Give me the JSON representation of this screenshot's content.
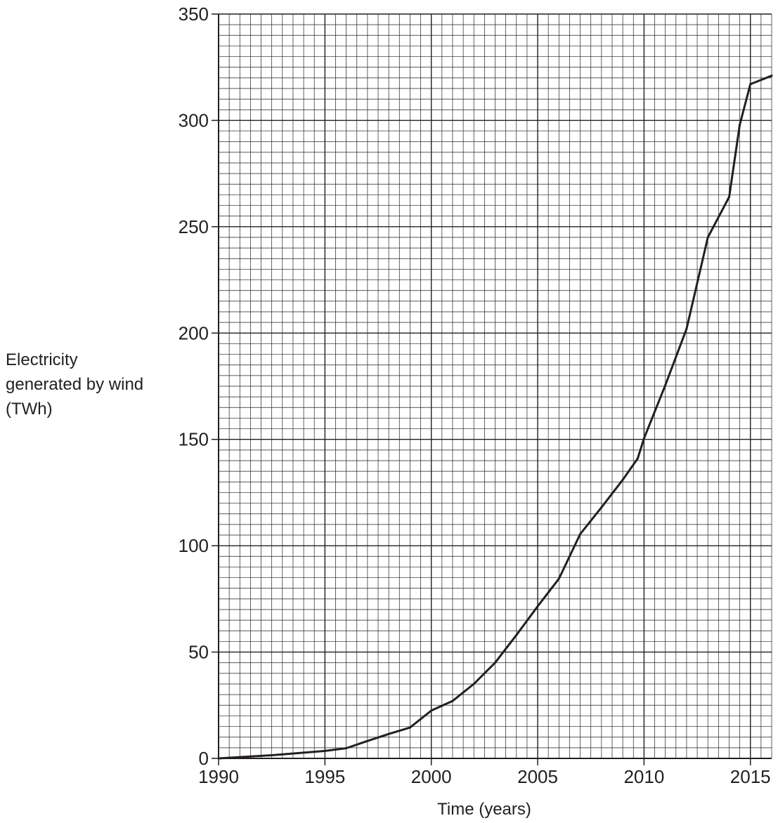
{
  "chart_data": {
    "type": "line",
    "xlabel": "Time (years)",
    "ylabel_lines": [
      "Electricity",
      "generated by wind",
      "(TWh)"
    ],
    "xlim": [
      1990,
      2016
    ],
    "ylim": [
      0,
      350
    ],
    "x_ticks": [
      1990,
      1995,
      2000,
      2005,
      2010,
      2015
    ],
    "y_ticks": [
      0,
      50,
      100,
      150,
      200,
      250,
      300,
      350
    ],
    "x_tick_labels": [
      "1990",
      "1995",
      "2000",
      "2005",
      "2010",
      "2015"
    ],
    "y_tick_labels": [
      "0",
      "50",
      "100",
      "150",
      "200",
      "250",
      "300",
      "350"
    ],
    "grid": true,
    "series": [
      {
        "x": [
          1990,
          1992.5,
          1995,
          1996,
          1997,
          1998,
          1999,
          2000,
          2001,
          2002,
          2003,
          2004,
          2005,
          2006,
          2007,
          2008,
          2009,
          2009.7,
          2010,
          2011,
          2012,
          2013,
          2014,
          2014.5,
          2015,
          2016
        ],
        "y": [
          0,
          1.5,
          3.5,
          4.8,
          8.2,
          11.5,
          14.5,
          22.5,
          27,
          35,
          45,
          58,
          71.5,
          84.5,
          105.5,
          118,
          131,
          141,
          150.5,
          175.5,
          202,
          245,
          264,
          298,
          317,
          321
        ],
        "color": "#231f20"
      }
    ]
  }
}
